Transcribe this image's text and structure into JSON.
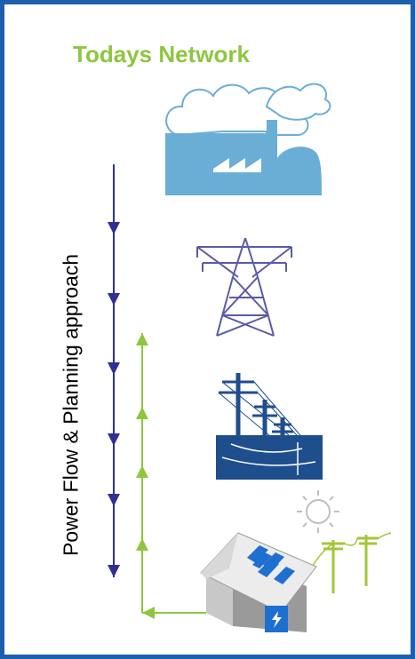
{
  "title": "Todays Network",
  "side_label": "Power Flow & Planning approach",
  "colors": {
    "frame": "#1b5fae",
    "title_green": "#8dc63f",
    "downward_arrow": "#2e3192",
    "upward_arrow": "#8dc63f",
    "factory": "#6aaed6",
    "tower": "#5a5aa8",
    "distribution": "#1f4e8c",
    "solar_pole": "#a4c53a"
  },
  "icons": [
    "power-plant-icon",
    "transmission-tower-icon",
    "distribution-lines-icon",
    "sun-icon",
    "solar-house-icon",
    "utility-pole-icon"
  ]
}
